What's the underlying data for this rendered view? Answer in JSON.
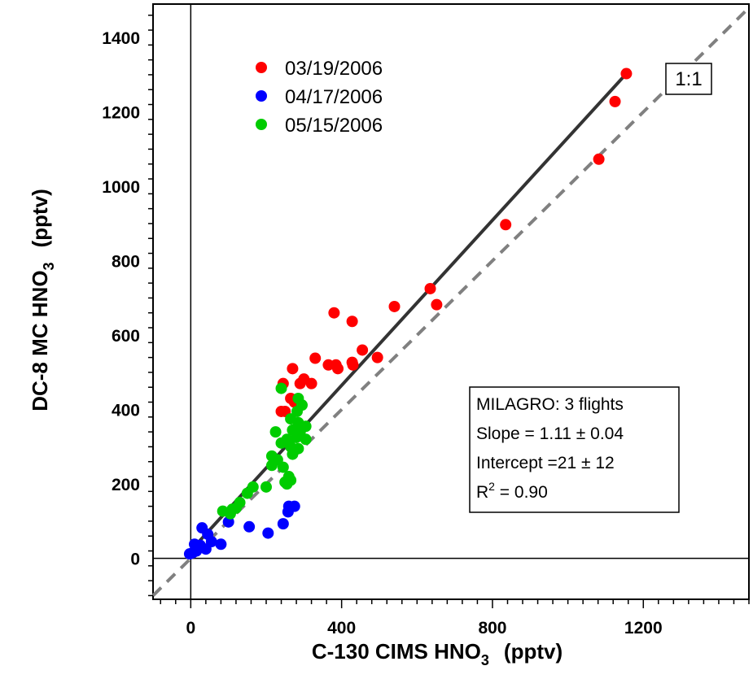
{
  "chart_data": {
    "type": "scatter",
    "title": "",
    "xlabel": {
      "main": "C-130 CIMS HNO",
      "sub": "3",
      "unit": "(pptv)"
    },
    "ylabel": {
      "main": "DC-8 MC HNO",
      "sub": "3",
      "unit": "(pptv)"
    },
    "xlim": [
      -100,
      1480
    ],
    "ylim": [
      -110,
      1490
    ],
    "xticks": [
      0,
      400,
      800,
      1200
    ],
    "xtick_labels": [
      "0",
      "400",
      "800",
      "1200"
    ],
    "yticks": [
      0,
      200,
      400,
      600,
      800,
      1000,
      1200,
      1400
    ],
    "ytick_labels": [
      "0",
      "200",
      "400",
      "600",
      "800",
      "1000",
      "1200",
      "1400"
    ],
    "grid": false,
    "legend_position": "top-left",
    "series": [
      {
        "name": "03/19/2006",
        "color": "#ff0000",
        "points": [
          [
            1155,
            1303
          ],
          [
            1125,
            1228
          ],
          [
            1082,
            1073
          ],
          [
            835,
            897
          ],
          [
            635,
            725
          ],
          [
            652,
            682
          ],
          [
            540,
            677
          ],
          [
            495,
            540
          ],
          [
            455,
            560
          ],
          [
            428,
            637
          ],
          [
            430,
            520
          ],
          [
            428,
            527
          ],
          [
            390,
            510
          ],
          [
            385,
            520
          ],
          [
            380,
            660
          ],
          [
            365,
            520
          ],
          [
            330,
            538
          ],
          [
            320,
            470
          ],
          [
            300,
            482
          ],
          [
            290,
            470
          ],
          [
            270,
            510
          ],
          [
            265,
            430
          ],
          [
            250,
            395
          ],
          [
            240,
            395
          ],
          [
            245,
            470
          ],
          [
            275,
            420
          ]
        ]
      },
      {
        "name": "04/17/2006",
        "color": "#0000ff",
        "points": [
          [
            275,
            140
          ],
          [
            260,
            140
          ],
          [
            258,
            125
          ],
          [
            245,
            93
          ],
          [
            205,
            68
          ],
          [
            155,
            85
          ],
          [
            100,
            98
          ],
          [
            80,
            38
          ],
          [
            55,
            45
          ],
          [
            45,
            65
          ],
          [
            30,
            82
          ],
          [
            20,
            30
          ],
          [
            15,
            20
          ],
          [
            10,
            38
          ],
          [
            5,
            15
          ],
          [
            -3,
            12
          ],
          [
            25,
            35
          ],
          [
            40,
            25
          ]
        ]
      },
      {
        "name": "05/15/2006",
        "color": "#00cc00",
        "points": [
          [
            240,
            457
          ],
          [
            285,
            430
          ],
          [
            295,
            412
          ],
          [
            282,
            395
          ],
          [
            265,
            375
          ],
          [
            285,
            365
          ],
          [
            305,
            355
          ],
          [
            270,
            345
          ],
          [
            225,
            340
          ],
          [
            290,
            340
          ],
          [
            305,
            320
          ],
          [
            280,
            325
          ],
          [
            255,
            320
          ],
          [
            240,
            310
          ],
          [
            265,
            300
          ],
          [
            285,
            295
          ],
          [
            215,
            275
          ],
          [
            230,
            265
          ],
          [
            270,
            280
          ],
          [
            215,
            250
          ],
          [
            245,
            245
          ],
          [
            260,
            220
          ],
          [
            255,
            200
          ],
          [
            265,
            210
          ],
          [
            250,
            205
          ],
          [
            200,
            192
          ],
          [
            165,
            192
          ],
          [
            150,
            175
          ],
          [
            130,
            150
          ],
          [
            120,
            135
          ],
          [
            85,
            127
          ],
          [
            105,
            120
          ],
          [
            110,
            132
          ]
        ]
      }
    ],
    "lines": [
      {
        "name": "fit",
        "style": "solid",
        "color": "#333333",
        "from": [
          0,
          21
        ],
        "to": [
          1155,
          1303
        ]
      },
      {
        "name": "one-to-one",
        "style": "dashed",
        "color": "#808080",
        "from": [
          -100,
          -100
        ],
        "to": [
          1480,
          1480
        ]
      }
    ],
    "annotations": {
      "one_to_one_label": "1:1",
      "stats": {
        "line1": "MILAGRO: 3 flights",
        "line2": "Slope = 1.11 ± 0.04",
        "line3": "Intercept =21 ± 12",
        "line4_prefix": "R",
        "line4_sup": "2",
        "line4_suffix": " = 0.90"
      }
    }
  }
}
